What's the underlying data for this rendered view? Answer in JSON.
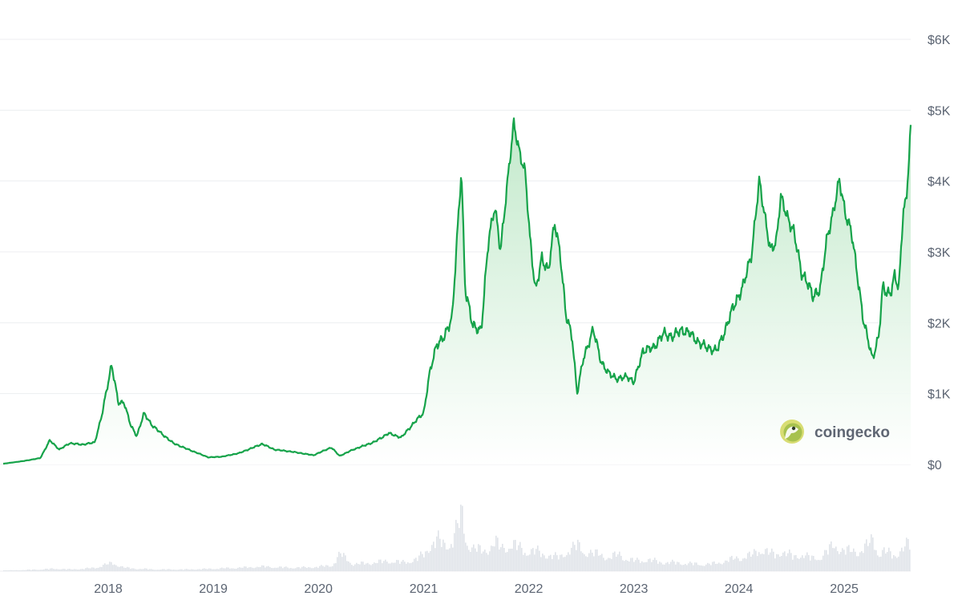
{
  "watermark": {
    "brand": "coingecko",
    "logo_icon": "coingecko-gecko-logo-icon"
  },
  "chart_data": {
    "type": "line",
    "title": "",
    "xlabel": "",
    "ylabel": "",
    "ylim": [
      0,
      6000
    ],
    "xlim": [
      "2017-01-01",
      "2025-08-20"
    ],
    "grid": true,
    "y_axis_position": "right",
    "yticks": [
      {
        "value": 0,
        "label": "$0"
      },
      {
        "value": 1000,
        "label": "$1K"
      },
      {
        "value": 2000,
        "label": "$2K"
      },
      {
        "value": 3000,
        "label": "$3K"
      },
      {
        "value": 4000,
        "label": "$4K"
      },
      {
        "value": 5000,
        "label": "$5K"
      },
      {
        "value": 6000,
        "label": "$6K"
      }
    ],
    "xticks": [
      {
        "value": "2018-01-01",
        "label": "2018"
      },
      {
        "value": "2019-01-01",
        "label": "2019"
      },
      {
        "value": "2020-01-01",
        "label": "2020"
      },
      {
        "value": "2021-01-01",
        "label": "2021"
      },
      {
        "value": "2022-01-01",
        "label": "2022"
      },
      {
        "value": "2023-01-01",
        "label": "2023"
      },
      {
        "value": "2024-01-01",
        "label": "2024"
      },
      {
        "value": "2025-01-01",
        "label": "2025"
      }
    ],
    "colors": {
      "line": "#16a34a",
      "area_top": "#bfe8c8",
      "area_bottom": "#ffffff",
      "volume": "#dfe3e8"
    },
    "series": [
      {
        "x": [
          "2017-01-01",
          "2017-03-15",
          "2017-05-10",
          "2017-06-12",
          "2017-07-15",
          "2017-08-20",
          "2017-10-01",
          "2017-11-15",
          "2017-12-10",
          "2018-01-13",
          "2018-02-05",
          "2018-02-25",
          "2018-03-20",
          "2018-04-10",
          "2018-05-05",
          "2018-06-01",
          "2018-07-01",
          "2018-08-15",
          "2018-10-01",
          "2018-12-15",
          "2019-02-01",
          "2019-04-01",
          "2019-06-20",
          "2019-08-01",
          "2019-10-01",
          "2019-12-15",
          "2020-02-15",
          "2020-03-15",
          "2020-05-01",
          "2020-07-15",
          "2020-09-01",
          "2020-10-15",
          "2020-12-01",
          "2021-01-01",
          "2021-01-20",
          "2021-02-15",
          "2021-03-15",
          "2021-04-10",
          "2021-05-12",
          "2021-05-25",
          "2021-06-20",
          "2021-07-20",
          "2021-08-15",
          "2021-09-05",
          "2021-09-25",
          "2021-10-15",
          "2021-11-10",
          "2021-12-01",
          "2021-12-20",
          "2022-01-05",
          "2022-01-25",
          "2022-02-15",
          "2022-03-10",
          "2022-04-01",
          "2022-04-20",
          "2022-05-10",
          "2022-06-01",
          "2022-06-18",
          "2022-07-10",
          "2022-08-13",
          "2022-09-10",
          "2022-10-01",
          "2022-11-09",
          "2022-12-10",
          "2023-01-01",
          "2023-02-01",
          "2023-03-10",
          "2023-04-15",
          "2023-05-15",
          "2023-06-15",
          "2023-07-15",
          "2023-08-20",
          "2023-09-15",
          "2023-10-15",
          "2023-11-15",
          "2023-12-15",
          "2024-01-15",
          "2024-02-15",
          "2024-03-12",
          "2024-04-01",
          "2024-04-20",
          "2024-05-10",
          "2024-05-25",
          "2024-06-15",
          "2024-07-10",
          "2024-08-05",
          "2024-08-25",
          "2024-09-15",
          "2024-10-10",
          "2024-11-01",
          "2024-11-25",
          "2024-12-15",
          "2025-01-05",
          "2025-01-25",
          "2025-02-15",
          "2025-03-10",
          "2025-04-09",
          "2025-05-01",
          "2025-05-15",
          "2025-06-10",
          "2025-06-25",
          "2025-07-10",
          "2025-07-25",
          "2025-08-05",
          "2025-08-20"
        ],
        "y": [
          10,
          50,
          90,
          340,
          210,
          300,
          280,
          310,
          700,
          1420,
          860,
          880,
          550,
          400,
          720,
          560,
          450,
          300,
          220,
          100,
          110,
          160,
          290,
          210,
          180,
          130,
          240,
          120,
          210,
          320,
          440,
          380,
          600,
          730,
          1250,
          1700,
          1800,
          2100,
          4150,
          2500,
          1950,
          1900,
          3200,
          3650,
          3000,
          3850,
          4800,
          4400,
          4100,
          3200,
          2450,
          2900,
          2750,
          3400,
          3000,
          2100,
          1800,
          1000,
          1500,
          1900,
          1450,
          1300,
          1200,
          1250,
          1150,
          1600,
          1650,
          1850,
          1800,
          1900,
          1850,
          1700,
          1650,
          1600,
          1900,
          2250,
          2500,
          3000,
          4000,
          3500,
          3000,
          3150,
          3800,
          3500,
          3300,
          2700,
          2600,
          2350,
          2500,
          3150,
          3600,
          4000,
          3550,
          3300,
          2700,
          2000,
          1500,
          1800,
          2500,
          2400,
          2650,
          2500,
          3600,
          3700,
          4750
        ]
      }
    ],
    "volume_relative": [
      0.01,
      0.02,
      0.03,
      0.04,
      0.04,
      0.03,
      0.04,
      0.06,
      0.1,
      0.14,
      0.1,
      0.06,
      0.05,
      0.04,
      0.04,
      0.03,
      0.03,
      0.03,
      0.03,
      0.04,
      0.05,
      0.06,
      0.08,
      0.07,
      0.06,
      0.07,
      0.1,
      0.3,
      0.12,
      0.15,
      0.18,
      0.15,
      0.2,
      0.3,
      0.45,
      0.55,
      0.45,
      0.55,
      1.0,
      0.55,
      0.4,
      0.35,
      0.4,
      0.5,
      0.4,
      0.45,
      0.45,
      0.4,
      0.35,
      0.35,
      0.35,
      0.3,
      0.28,
      0.25,
      0.25,
      0.35,
      0.4,
      0.45,
      0.35,
      0.3,
      0.3,
      0.22,
      0.3,
      0.2,
      0.18,
      0.2,
      0.18,
      0.15,
      0.15,
      0.14,
      0.13,
      0.12,
      0.12,
      0.14,
      0.18,
      0.22,
      0.25,
      0.28,
      0.4,
      0.35,
      0.3,
      0.3,
      0.35,
      0.3,
      0.25,
      0.3,
      0.25,
      0.22,
      0.25,
      0.35,
      0.45,
      0.4,
      0.35,
      0.35,
      0.35,
      0.4,
      0.55,
      0.3,
      0.35,
      0.3,
      0.28,
      0.35,
      0.4,
      0.45,
      0.55
    ]
  }
}
